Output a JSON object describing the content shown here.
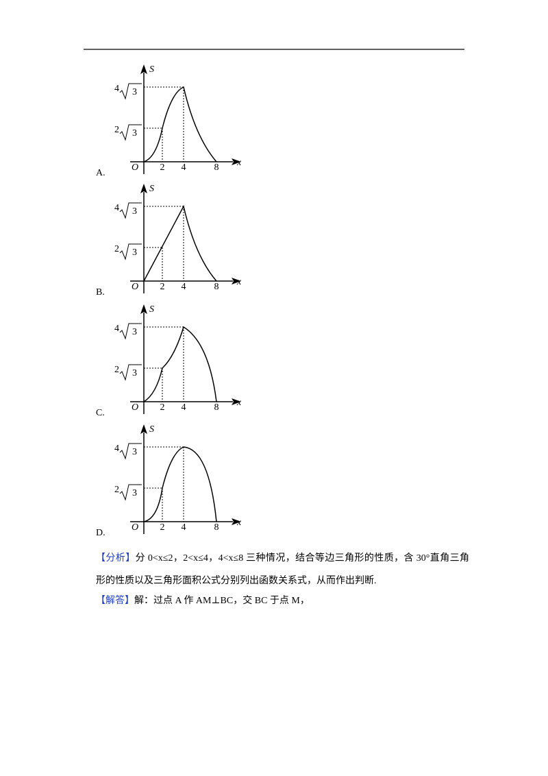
{
  "options": [
    {
      "label": "A.",
      "graph": {
        "y_axis": "S",
        "x_axis": "x",
        "origin": "O",
        "x_ticks": [
          "2",
          "4",
          "8"
        ],
        "y_ticks": [
          {
            "coef": "4",
            "radicand": "3"
          },
          {
            "coef": "2",
            "radicand": "3"
          }
        ]
      }
    },
    {
      "label": "B.",
      "graph": {
        "y_axis": "S",
        "x_axis": "x",
        "origin": "O",
        "x_ticks": [
          "2",
          "4",
          "8"
        ],
        "y_ticks": [
          {
            "coef": "4",
            "radicand": "3"
          },
          {
            "coef": "2",
            "radicand": "3"
          }
        ]
      }
    },
    {
      "label": "C.",
      "graph": {
        "y_axis": "S",
        "x_axis": "x",
        "origin": "O",
        "x_ticks": [
          "2",
          "4",
          "8"
        ],
        "y_ticks": [
          {
            "coef": "4",
            "radicand": "3"
          },
          {
            "coef": "2",
            "radicand": "3"
          }
        ]
      }
    },
    {
      "label": "D.",
      "graph": {
        "y_axis": "S",
        "x_axis": "x",
        "origin": "O",
        "x_ticks": [
          "2",
          "4",
          "8"
        ],
        "y_ticks": [
          {
            "coef": "4",
            "radicand": "3"
          },
          {
            "coef": "2",
            "radicand": "3"
          }
        ]
      }
    }
  ],
  "analysis": {
    "tag": "【分析】",
    "text": "分 0<x≤2，2<x≤4，4<x≤8 三种情况，结合等边三角形的性质，含 30°直角三角形的性质以及三角形面积公式分别列出函数关系式，从而作出判断."
  },
  "solution": {
    "tag": "【解答】",
    "text": "解：过点 A 作 AM⊥BC，交 BC 于点 M，"
  }
}
